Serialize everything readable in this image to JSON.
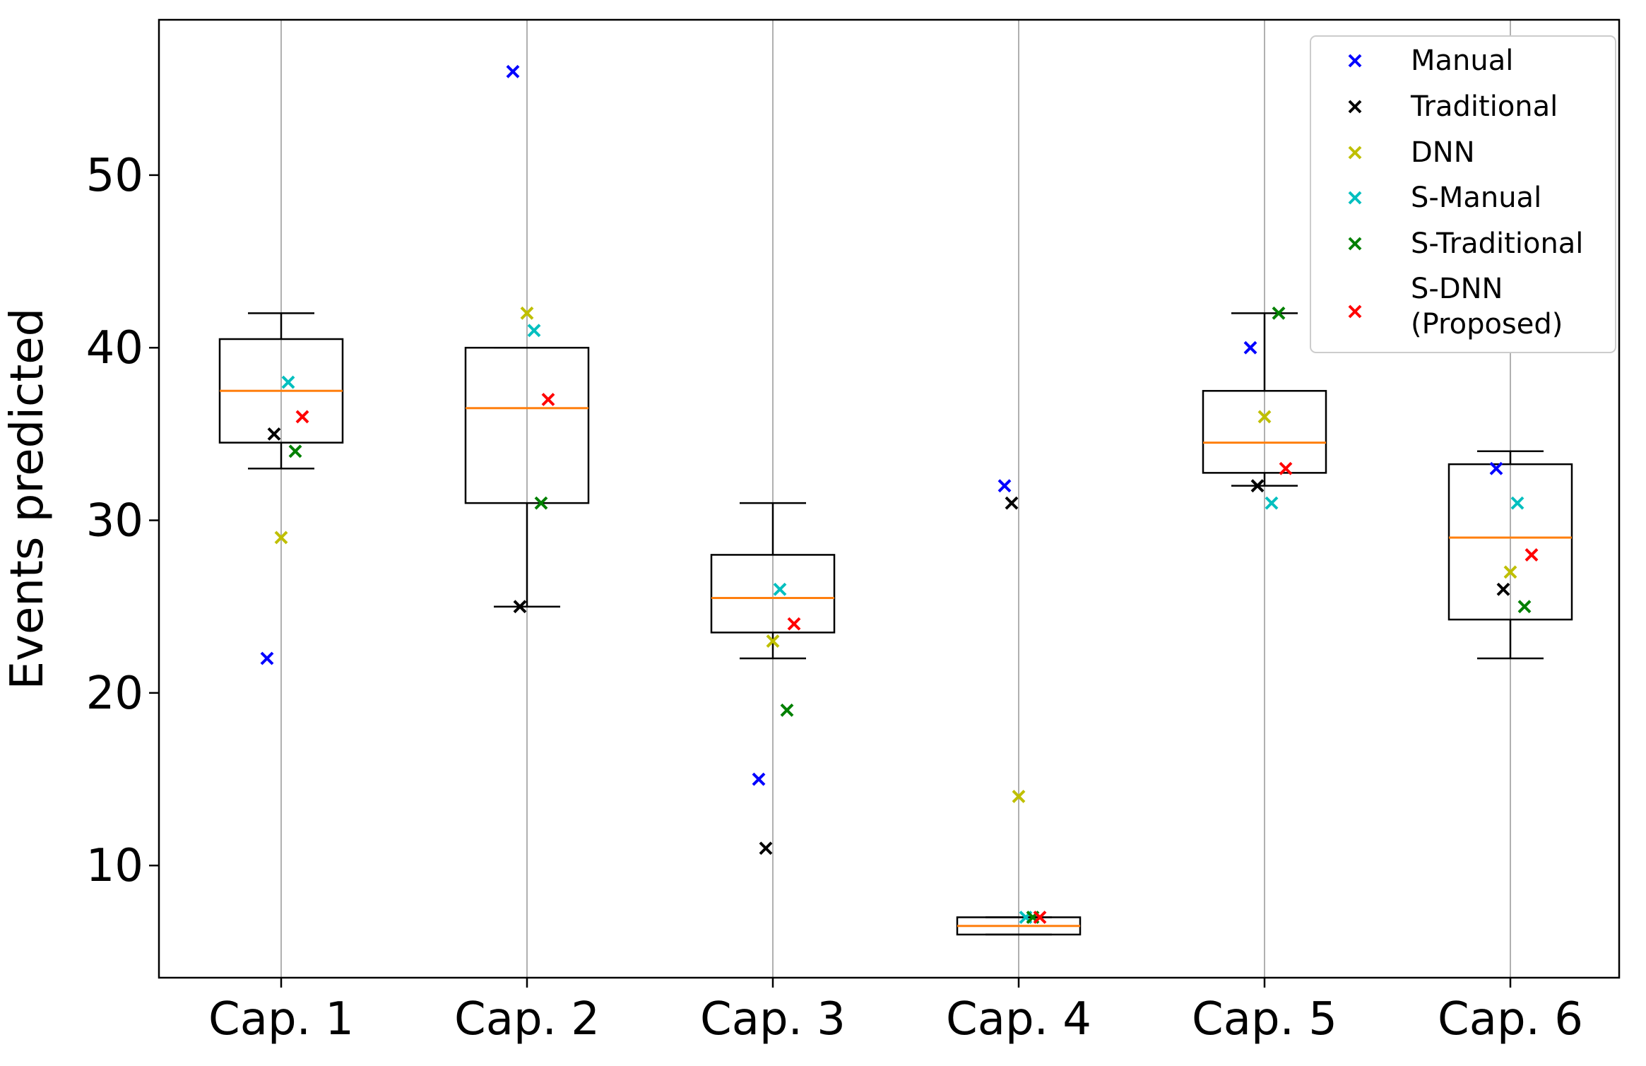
{
  "chart_data": {
    "type": "box",
    "title": "",
    "xlabel": "",
    "ylabel": "Events predicted",
    "ylim": [
      3.5,
      59
    ],
    "yticks": [
      10,
      20,
      30,
      40,
      50
    ],
    "grid": "vertical",
    "legend_position": "top-right",
    "categories": [
      "Cap. 1",
      "Cap. 2",
      "Cap. 3",
      "Cap. 4",
      "Cap. 5",
      "Cap. 6"
    ],
    "series": [
      {
        "name": "Manual",
        "color": "#0000ff",
        "values": [
          22,
          56,
          15,
          32,
          40,
          33
        ]
      },
      {
        "name": "Traditional",
        "color": "#000000",
        "values": [
          35,
          25,
          11,
          31,
          32,
          26
        ]
      },
      {
        "name": "DNN",
        "color": "#bfbf00",
        "values": [
          29,
          42,
          23,
          14,
          36,
          27
        ]
      },
      {
        "name": "S-Manual",
        "color": "#00bfbf",
        "values": [
          38,
          41,
          26,
          7,
          31,
          31
        ]
      },
      {
        "name": "S-Traditional",
        "color": "#008000",
        "values": [
          34,
          31,
          19,
          7,
          42,
          25
        ]
      },
      {
        "name": "S-DNN (Proposed)",
        "color": "#ff0000",
        "values": [
          36,
          37,
          24,
          7,
          33,
          28
        ]
      }
    ],
    "legend_labels": [
      "Manual",
      "Traditional",
      "DNN",
      "S-Manual",
      "S-Traditional",
      "S-DNN\n(Proposed)"
    ],
    "boxes": [
      {
        "whisker_low": 33,
        "q1": 34.5,
        "median": 37.5,
        "q3": 40.5,
        "whisker_high": 42
      },
      {
        "whisker_low": 25,
        "q1": 31,
        "median": 36.5,
        "q3": 40,
        "whisker_high": 40
      },
      {
        "whisker_low": 22,
        "q1": 23.5,
        "median": 25.5,
        "q3": 28,
        "whisker_high": 31
      },
      {
        "whisker_low": 6,
        "q1": 6,
        "median": 6.5,
        "q3": 7,
        "whisker_high": 7
      },
      {
        "whisker_low": 32,
        "q1": 32.75,
        "median": 34.5,
        "q3": 37.5,
        "whisker_high": 42
      },
      {
        "whisker_low": 22,
        "q1": 24.25,
        "median": 29,
        "q3": 33.25,
        "whisker_high": 34
      }
    ],
    "median_color": "#ff7f0e"
  }
}
